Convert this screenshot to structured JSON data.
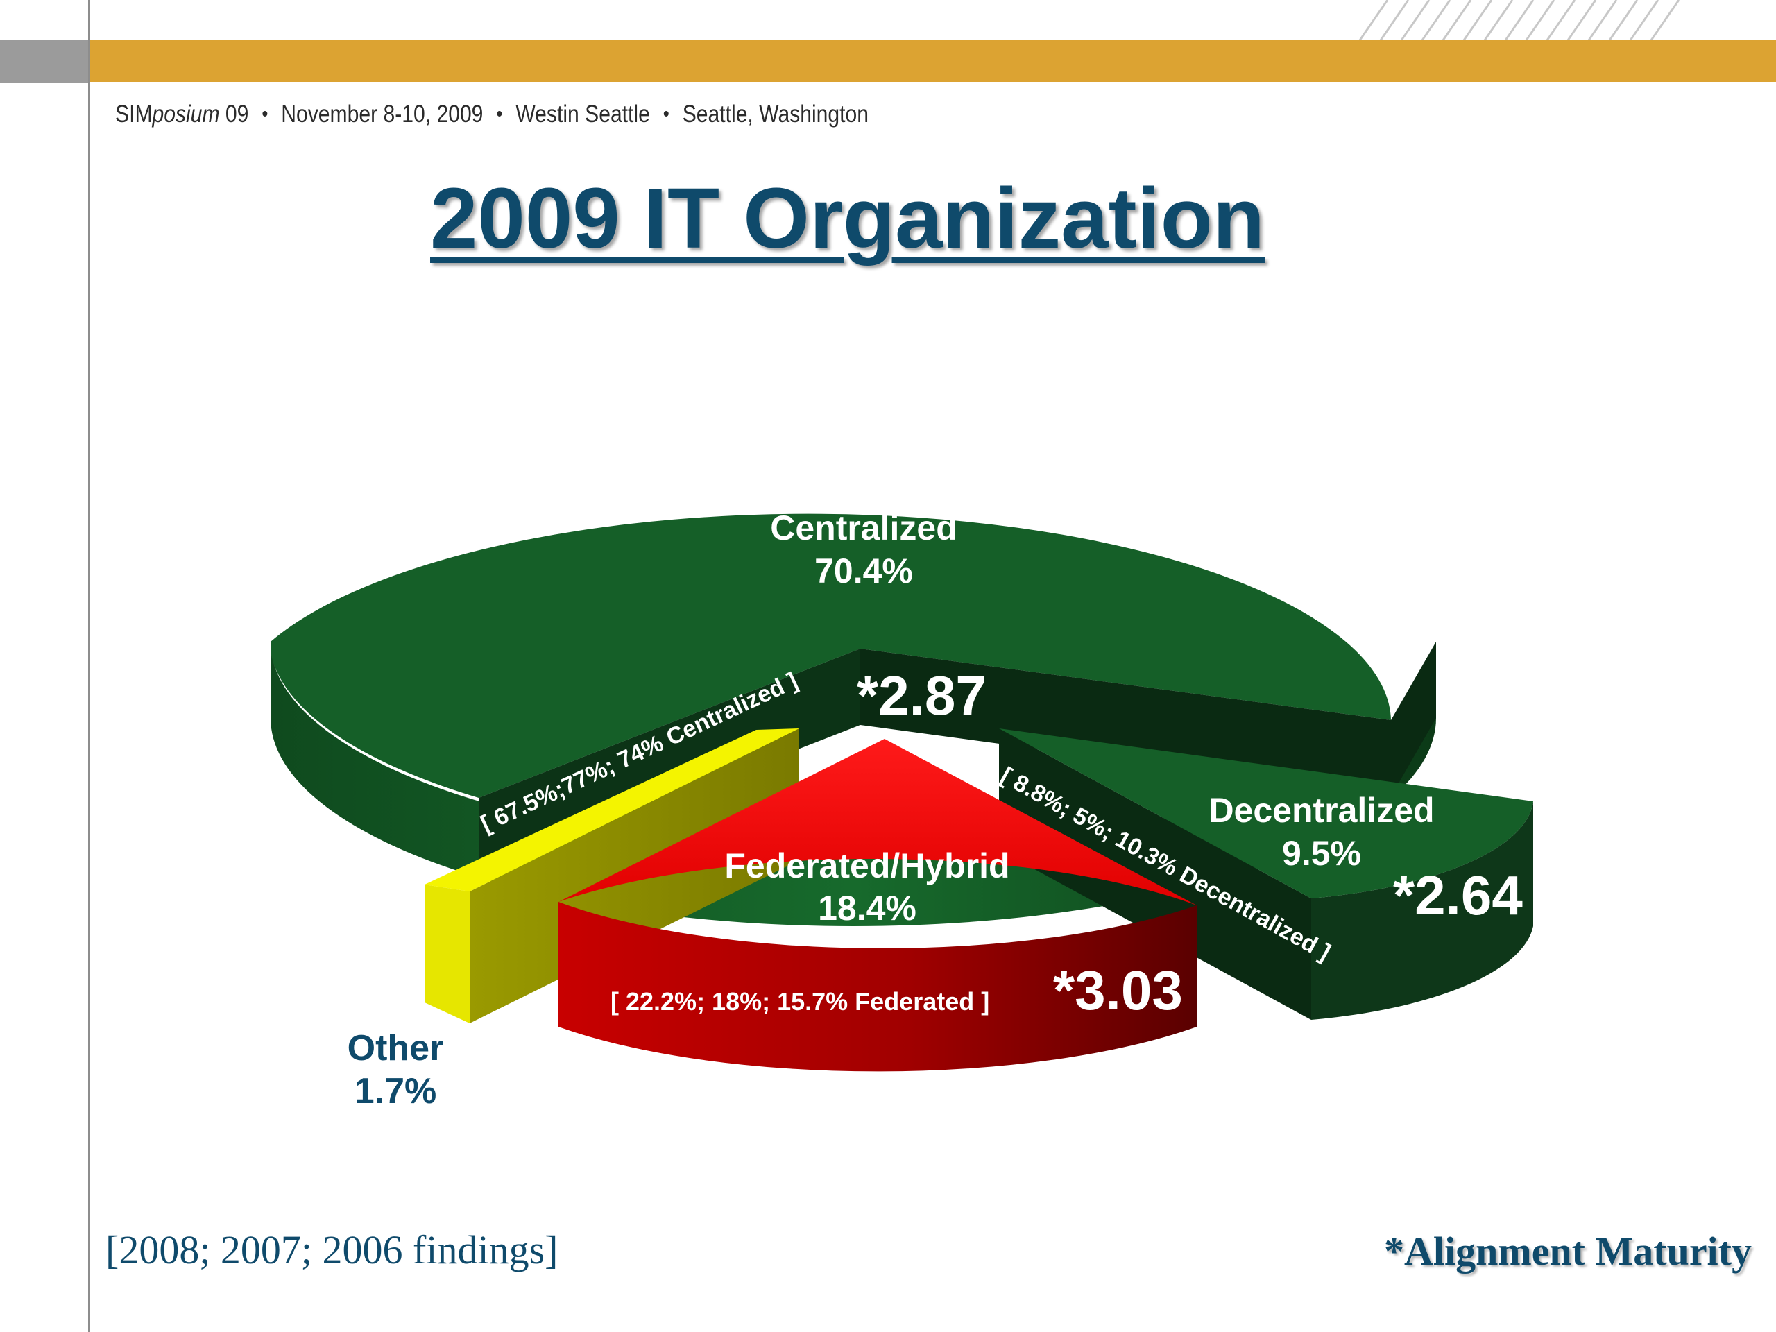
{
  "header": {
    "brand_plain": "SIM",
    "brand_italic": "posium",
    "brand_year": " 09",
    "date": "November 8-10, 2009",
    "venue": "Westin Seattle",
    "city": "Seattle, Washington"
  },
  "slide_title": "2009 IT Organization",
  "colors": {
    "band": "#dca332",
    "title": "#0f4a6b",
    "centralized": "#155f28",
    "decentralized": "#155f28",
    "federated": "#ee1010",
    "other": "#e0e000"
  },
  "chart_data": {
    "type": "pie",
    "title": "2009 IT Organization",
    "slices": [
      {
        "label": "Centralized",
        "value": 70.4,
        "value_label": "70.4%",
        "prior": "[ 67.5%;77%; 74%  Centralized ]",
        "alignment": "*2.87"
      },
      {
        "label": "Decentralized",
        "value": 9.5,
        "value_label": "9.5%",
        "prior": "[ 8.8%; 5%; 10.3% Decentralized ]",
        "alignment": "*2.64"
      },
      {
        "label": "Federated/Hybrid",
        "value": 18.4,
        "value_label": "18.4%",
        "prior": "[ 22.2%; 18%; 15.7% Federated ]",
        "alignment": "*3.03"
      },
      {
        "label": "Other",
        "value": 1.7,
        "value_label": "1.7%"
      }
    ]
  },
  "footer": {
    "findings_note": "[2008; 2007; 2006 findings]",
    "legend_note": "*Alignment Maturity"
  }
}
